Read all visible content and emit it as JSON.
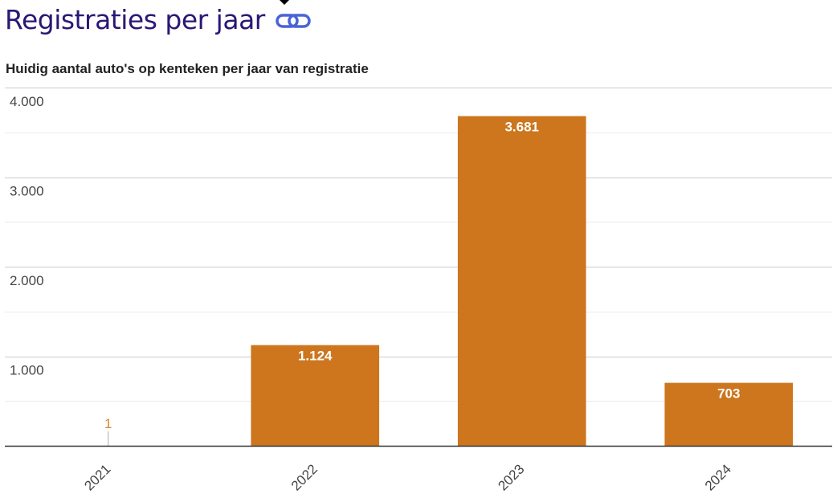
{
  "header": {
    "title": "Registraties per jaar",
    "link_icon": "link-icon",
    "title_color": "#2b1774",
    "link_icon_color": "#4a63d6"
  },
  "chart_data": {
    "type": "bar",
    "title": "Huidig aantal auto's op kenteken per jaar van registratie",
    "xlabel": "",
    "ylabel": "",
    "categories": [
      "2021",
      "2022",
      "2023",
      "2024"
    ],
    "values": [
      1,
      1124,
      3681,
      703
    ],
    "value_labels": [
      "1",
      "1.124",
      "3.681",
      "703"
    ],
    "ylim": [
      0,
      4000
    ],
    "y_ticks": [
      {
        "value": 1000,
        "label": "1.000"
      },
      {
        "value": 2000,
        "label": "2.000"
      },
      {
        "value": 3000,
        "label": "3.000"
      },
      {
        "value": 4000,
        "label": "4.000"
      }
    ],
    "grid": true,
    "legend": "none",
    "bar_color": "#cd761e",
    "label_color": "#ffffff",
    "small_value_label_color": "#d9862e"
  }
}
